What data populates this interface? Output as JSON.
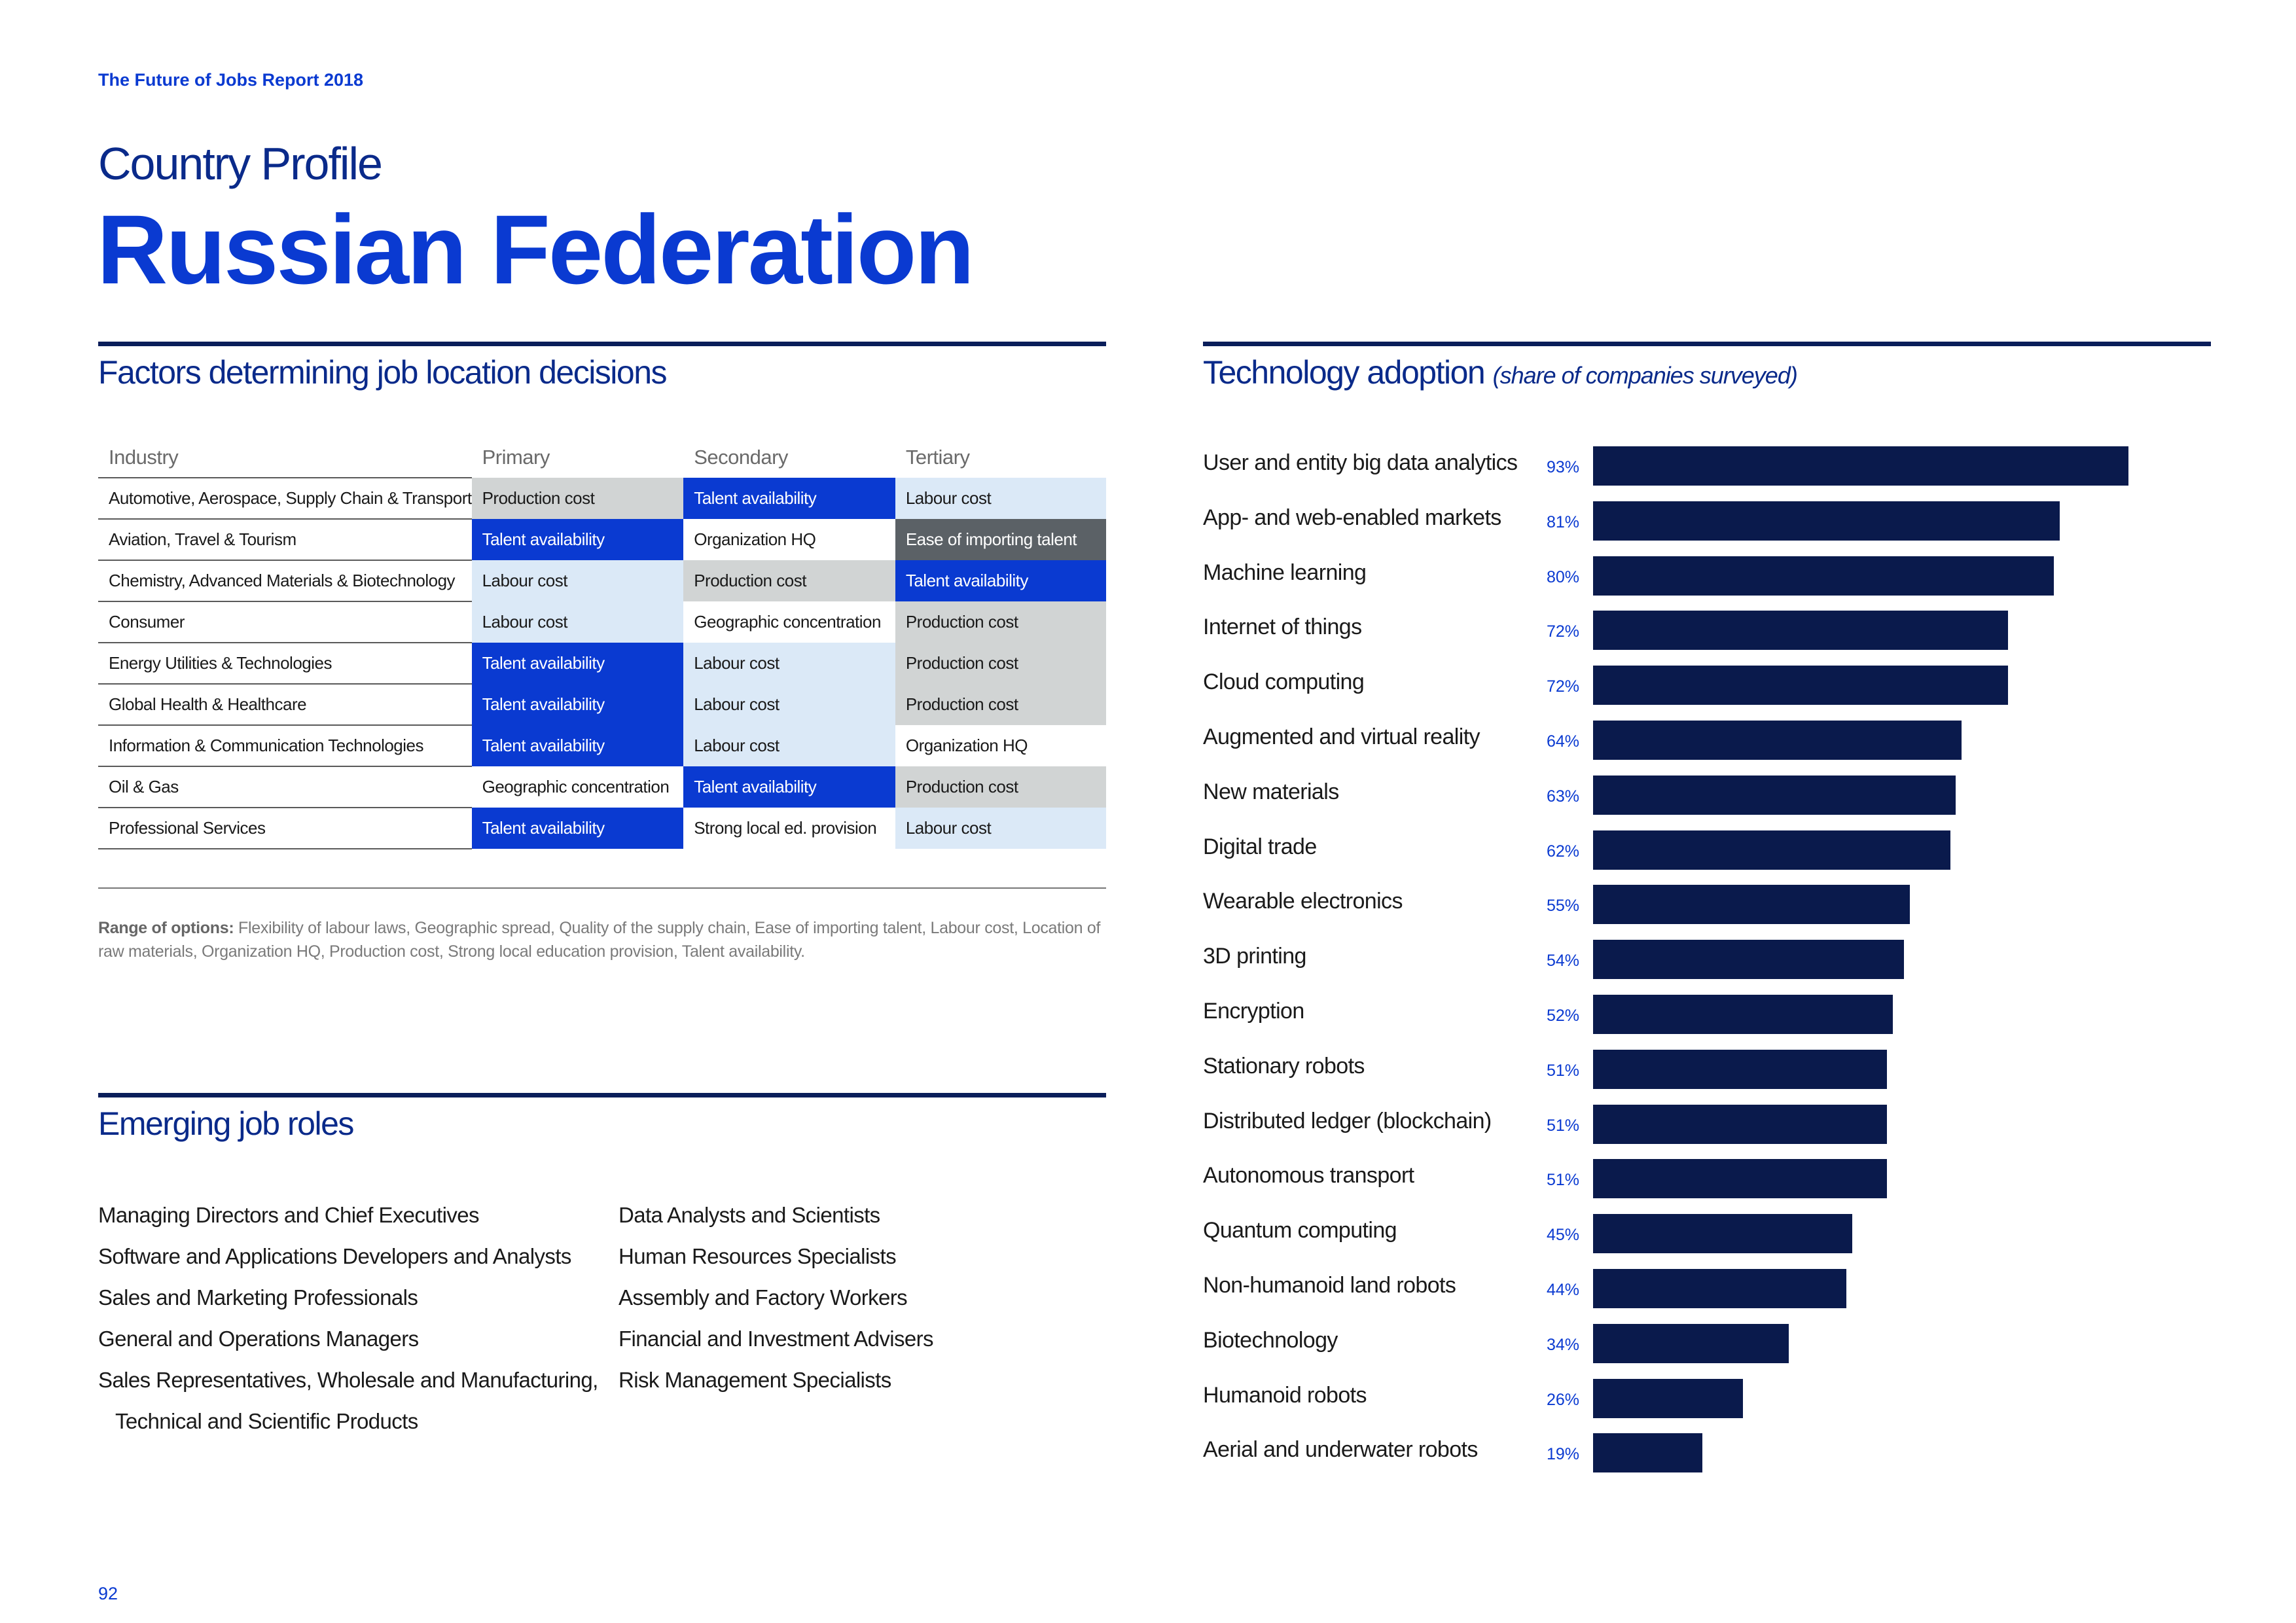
{
  "header": {
    "report_title": "The Future of Jobs Report 2018",
    "kicker": "Country Profile",
    "country": "Russian Federation"
  },
  "factors": {
    "title": "Factors determining job location decisions",
    "columns": [
      "Industry",
      "Primary",
      "Secondary",
      "Tertiary"
    ],
    "rows": [
      {
        "industry": "Automotive, Aerospace, Supply Chain & Transport",
        "primary": "Production cost",
        "secondary": "Talent availability",
        "tertiary": "Labour cost"
      },
      {
        "industry": "Aviation, Travel & Tourism",
        "primary": "Talent availability",
        "secondary": "Organization HQ",
        "tertiary": "Ease of importing talent"
      },
      {
        "industry": "Chemistry, Advanced Materials & Biotechnology",
        "primary": "Labour cost",
        "secondary": "Production cost",
        "tertiary": "Talent availability"
      },
      {
        "industry": "Consumer",
        "primary": "Labour cost",
        "secondary": "Geographic concentration",
        "tertiary": "Production cost"
      },
      {
        "industry": "Energy Utilities & Technologies",
        "primary": "Talent availability",
        "secondary": "Labour cost",
        "tertiary": "Production cost"
      },
      {
        "industry": "Global Health & Healthcare",
        "primary": "Talent availability",
        "secondary": "Labour cost",
        "tertiary": "Production cost"
      },
      {
        "industry": "Information & Communication Technologies",
        "primary": "Talent availability",
        "secondary": "Labour cost",
        "tertiary": "Organization HQ"
      },
      {
        "industry": "Oil & Gas",
        "primary": "Geographic concentration",
        "secondary": "Talent availability",
        "tertiary": "Production cost"
      },
      {
        "industry": "Professional Services",
        "primary": "Talent availability",
        "secondary": "Strong local ed. provision",
        "tertiary": "Labour cost"
      }
    ],
    "range_label": "Range of options:",
    "range_text": " Flexibility of labour laws, Geographic spread, Quality of the supply chain, Ease of importing talent, Labour cost, Location of raw materials, Organization HQ, Production cost, Strong local education provision, Talent availability."
  },
  "roles": {
    "title": "Emerging job roles",
    "left": [
      "Managing Directors and Chief Executives",
      "Software and Applications Developers and Analysts",
      "Sales and Marketing Professionals",
      "General and Operations Managers",
      "Sales Representatives, Wholesale and Manufacturing,",
      "Technical and Scientific Products"
    ],
    "right": [
      "Data Analysts and Scientists",
      "Human Resources Specialists",
      "Assembly and Factory Workers",
      "Financial and Investment Advisers",
      "Risk Management Specialists"
    ]
  },
  "tech": {
    "title": "Technology adoption",
    "subtitle": "(share of companies surveyed)"
  },
  "chart_data": {
    "type": "bar",
    "orientation": "horizontal",
    "title": "Technology adoption (share of companies surveyed)",
    "xlabel": "",
    "ylabel": "",
    "xlim": [
      0,
      100
    ],
    "bar_color": "#0a1a4c",
    "categories": [
      "User and entity big data analytics",
      "App- and web-enabled markets",
      "Machine learning",
      "Internet of things",
      "Cloud computing",
      "Augmented and virtual reality",
      "New materials",
      "Digital trade",
      "Wearable electronics",
      "3D printing",
      "Encryption",
      "Stationary robots",
      "Distributed ledger (blockchain)",
      "Autonomous transport",
      "Quantum computing",
      "Non-humanoid land robots",
      "Biotechnology",
      "Humanoid robots",
      "Aerial and underwater robots"
    ],
    "values": [
      93,
      81,
      80,
      72,
      72,
      64,
      63,
      62,
      55,
      54,
      52,
      51,
      51,
      51,
      45,
      44,
      34,
      26,
      19
    ],
    "labels": [
      "93%",
      "81%",
      "80%",
      "72%",
      "72%",
      "64%",
      "63%",
      "62%",
      "55%",
      "54%",
      "52%",
      "51%",
      "51%",
      "51%",
      "45%",
      "44%",
      "34%",
      "26%",
      "19%"
    ]
  },
  "footer": {
    "page_number": "92"
  }
}
